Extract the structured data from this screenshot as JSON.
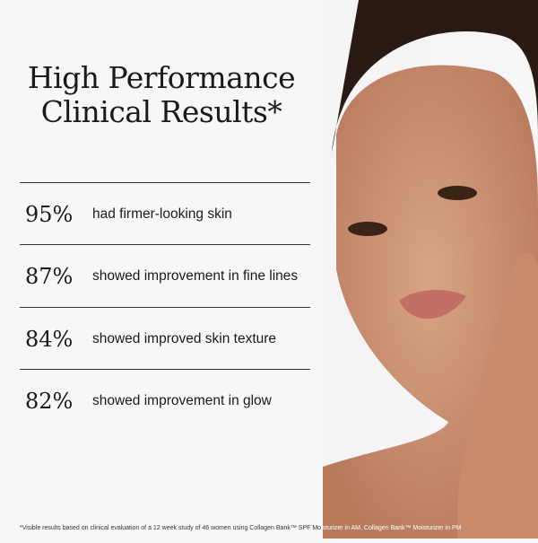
{
  "title": [
    "High Performance",
    "Clinical Results*"
  ],
  "stats": [
    {
      "value": "95%",
      "text": "had firmer-looking skin"
    },
    {
      "value": "87%",
      "text": "showed improvement in fine lines"
    },
    {
      "value": "84%",
      "text": "showed improved skin texture"
    },
    {
      "value": "82%",
      "text": "showed improvement in glow"
    }
  ],
  "footnote": "*Visible results based on clinical evaluation of a 12 week study of 46 women using Collagen Bank™ SPF Mo",
  "footnote_tail": "isturizer in AM, Collagen Bank™ Moisturizer in PM"
}
